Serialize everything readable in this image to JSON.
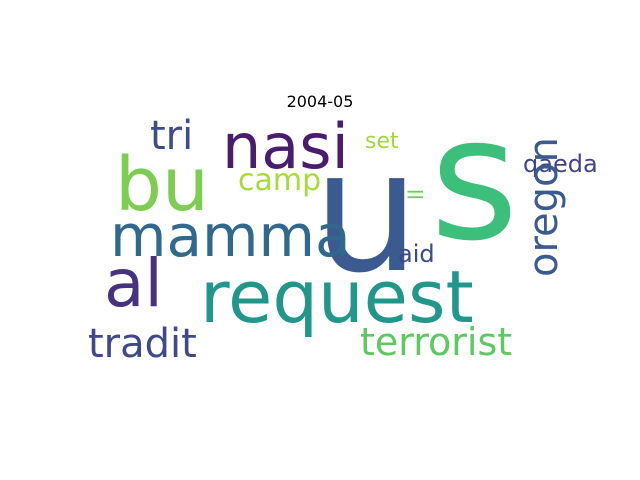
{
  "title": "2004-05",
  "words": [
    {
      "text": "u",
      "color": "#3b5a8f"
    },
    {
      "text": "s",
      "color": "#3bbf7a"
    },
    {
      "text": "request",
      "color": "#21968b"
    },
    {
      "text": "nasi",
      "color": "#4a1c6e"
    },
    {
      "text": "bu",
      "color": "#7ccd50"
    },
    {
      "text": "mamma",
      "color": "#31688e"
    },
    {
      "text": "al",
      "color": "#46327e"
    },
    {
      "text": "tri",
      "color": "#3e4c8a"
    },
    {
      "text": "tradit",
      "color": "#3f4889"
    },
    {
      "text": "terrorist",
      "color": "#5ec962"
    },
    {
      "text": "camp",
      "color": "#a6db3a"
    },
    {
      "text": "set",
      "color": "#a0da39"
    },
    {
      "text": "qaeda",
      "color": "#414487"
    },
    {
      "text": "aid",
      "color": "#3a4a8b"
    },
    {
      "text": "oregon",
      "color": "#3b5a8f"
    },
    {
      "text": "ll",
      "color": "#6ccc5a"
    }
  ]
}
